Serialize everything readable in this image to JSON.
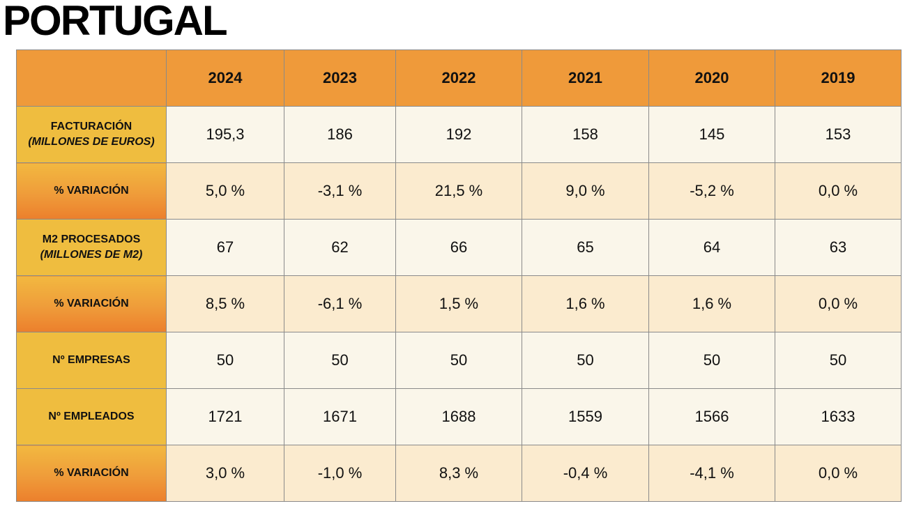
{
  "title": "PORTUGAL",
  "columns": [
    "",
    "2024",
    "2023",
    "2022",
    "2021",
    "2020",
    "2019"
  ],
  "rows": [
    {
      "label": "FACTURACIÓN",
      "sublabel": "(MILLONES DE EUROS)",
      "style": "amber",
      "values": [
        "195,3",
        "186",
        "192",
        "158",
        "145",
        "153"
      ]
    },
    {
      "label": "% VARIACIÓN",
      "sublabel": "",
      "style": "gradient",
      "values": [
        "5,0 %",
        "-3,1 %",
        "21,5 %",
        "9,0 %",
        "-5,2 %",
        "0,0 %"
      ]
    },
    {
      "label": "M2 PROCESADOS",
      "sublabel": "(MILLONES DE M2)",
      "style": "amber",
      "values": [
        "67",
        "62",
        "66",
        "65",
        "64",
        "63"
      ]
    },
    {
      "label": "% VARIACIÓN",
      "sublabel": "",
      "style": "gradient",
      "values": [
        "8,5 %",
        "-6,1 %",
        "1,5 %",
        "1,6 %",
        "1,6 %",
        "0,0 %"
      ]
    },
    {
      "label": "Nº EMPRESAS",
      "sublabel": "",
      "style": "amber",
      "values": [
        "50",
        "50",
        "50",
        "50",
        "50",
        "50"
      ]
    },
    {
      "label": "Nº EMPLEADOS",
      "sublabel": "",
      "style": "amber",
      "values": [
        "1721",
        "1671",
        "1688",
        "1559",
        "1566",
        "1633"
      ]
    },
    {
      "label": "% VARIACIÓN",
      "sublabel": "",
      "style": "gradient",
      "values": [
        "3,0 %",
        "-1,0 %",
        "8,3 %",
        "-0,4 %",
        "-4,1 %",
        "0,0 %"
      ]
    }
  ],
  "colors": {
    "header": "#ef9a3a",
    "label_amber": "#efbd3f",
    "label_gradient_top": "#f2b840",
    "label_gradient_bottom": "#ec7f2c",
    "cell_light": "#faf6ea",
    "cell_tinted": "#fbebcf"
  }
}
